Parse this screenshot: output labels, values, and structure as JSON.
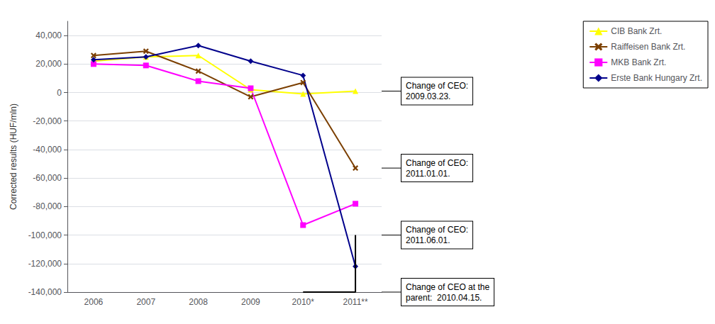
{
  "chart_data": {
    "type": "line",
    "ylabel": "Corrected results (HUF/mln)",
    "categories": [
      "2006",
      "2007",
      "2008",
      "2009",
      "2010*",
      "2011**"
    ],
    "ylim": [
      -140000,
      50000
    ],
    "yticks": [
      {
        "value": -140000,
        "label": "-140,000"
      },
      {
        "value": -120000,
        "label": "-120,000"
      },
      {
        "value": -100000,
        "label": "-100,000"
      },
      {
        "value": -80000,
        "label": "-80,000"
      },
      {
        "value": -60000,
        "label": "-60,000"
      },
      {
        "value": -40000,
        "label": "-40,000"
      },
      {
        "value": -20000,
        "label": "-20,000"
      },
      0,
      {
        "value": 20000,
        "label": "20,000"
      },
      {
        "value": 40000,
        "label": "40,000"
      }
    ],
    "grid": true,
    "legend": "right",
    "series": [
      {
        "name": "CIB Bank Zrt.",
        "color": "#FFFF00",
        "marker": "triangle",
        "values": [
          22000,
          25000,
          26000,
          2000,
          -1000,
          1000
        ]
      },
      {
        "name": "Raiffeisen Bank Zrt.",
        "color": "#7B3F00",
        "marker": "x",
        "values": [
          26000,
          29000,
          15000,
          -3000,
          7000,
          -53000
        ]
      },
      {
        "name": "MKB Bank Zrt.",
        "color": "#FF00FF",
        "marker": "square",
        "values": [
          20000,
          19000,
          8000,
          3000,
          -93000,
          -78000
        ]
      },
      {
        "name": "Erste Bank Hungary Zrt.",
        "color": "#00008B",
        "marker": "diamond",
        "values": [
          23000,
          25000,
          33000,
          22000,
          12000,
          -122000
        ]
      }
    ],
    "lines": [
      {
        "x": [
          "2010*",
          "2011**",
          "2011**"
        ],
        "values": [
          -140000,
          -140000,
          -100000
        ],
        "color": "#000000"
      }
    ],
    "annotations": [
      {
        "text": "Change of CEO:\n2009.03.23.",
        "y": 1000
      },
      {
        "text": "Change of CEO:\n2011.01.01.",
        "y": -53000
      },
      {
        "text": "Change of CEO:\n2011.06.01.",
        "y": -100000
      },
      {
        "text": "Change of CEO at the\nparent:  2010.04.15.",
        "y": -140000
      }
    ]
  }
}
